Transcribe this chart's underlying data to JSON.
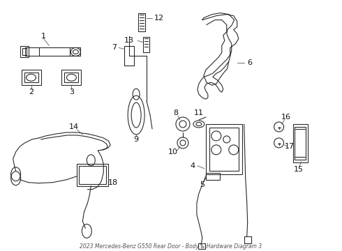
{
  "title": "2023 Mercedes-Benz G550 Rear Door - Body & Hardware Diagram 3",
  "bg_color": "#ffffff",
  "line_color": "#2a2a2a",
  "text_color": "#111111",
  "figsize": [
    4.9,
    3.6
  ],
  "dpi": 100
}
